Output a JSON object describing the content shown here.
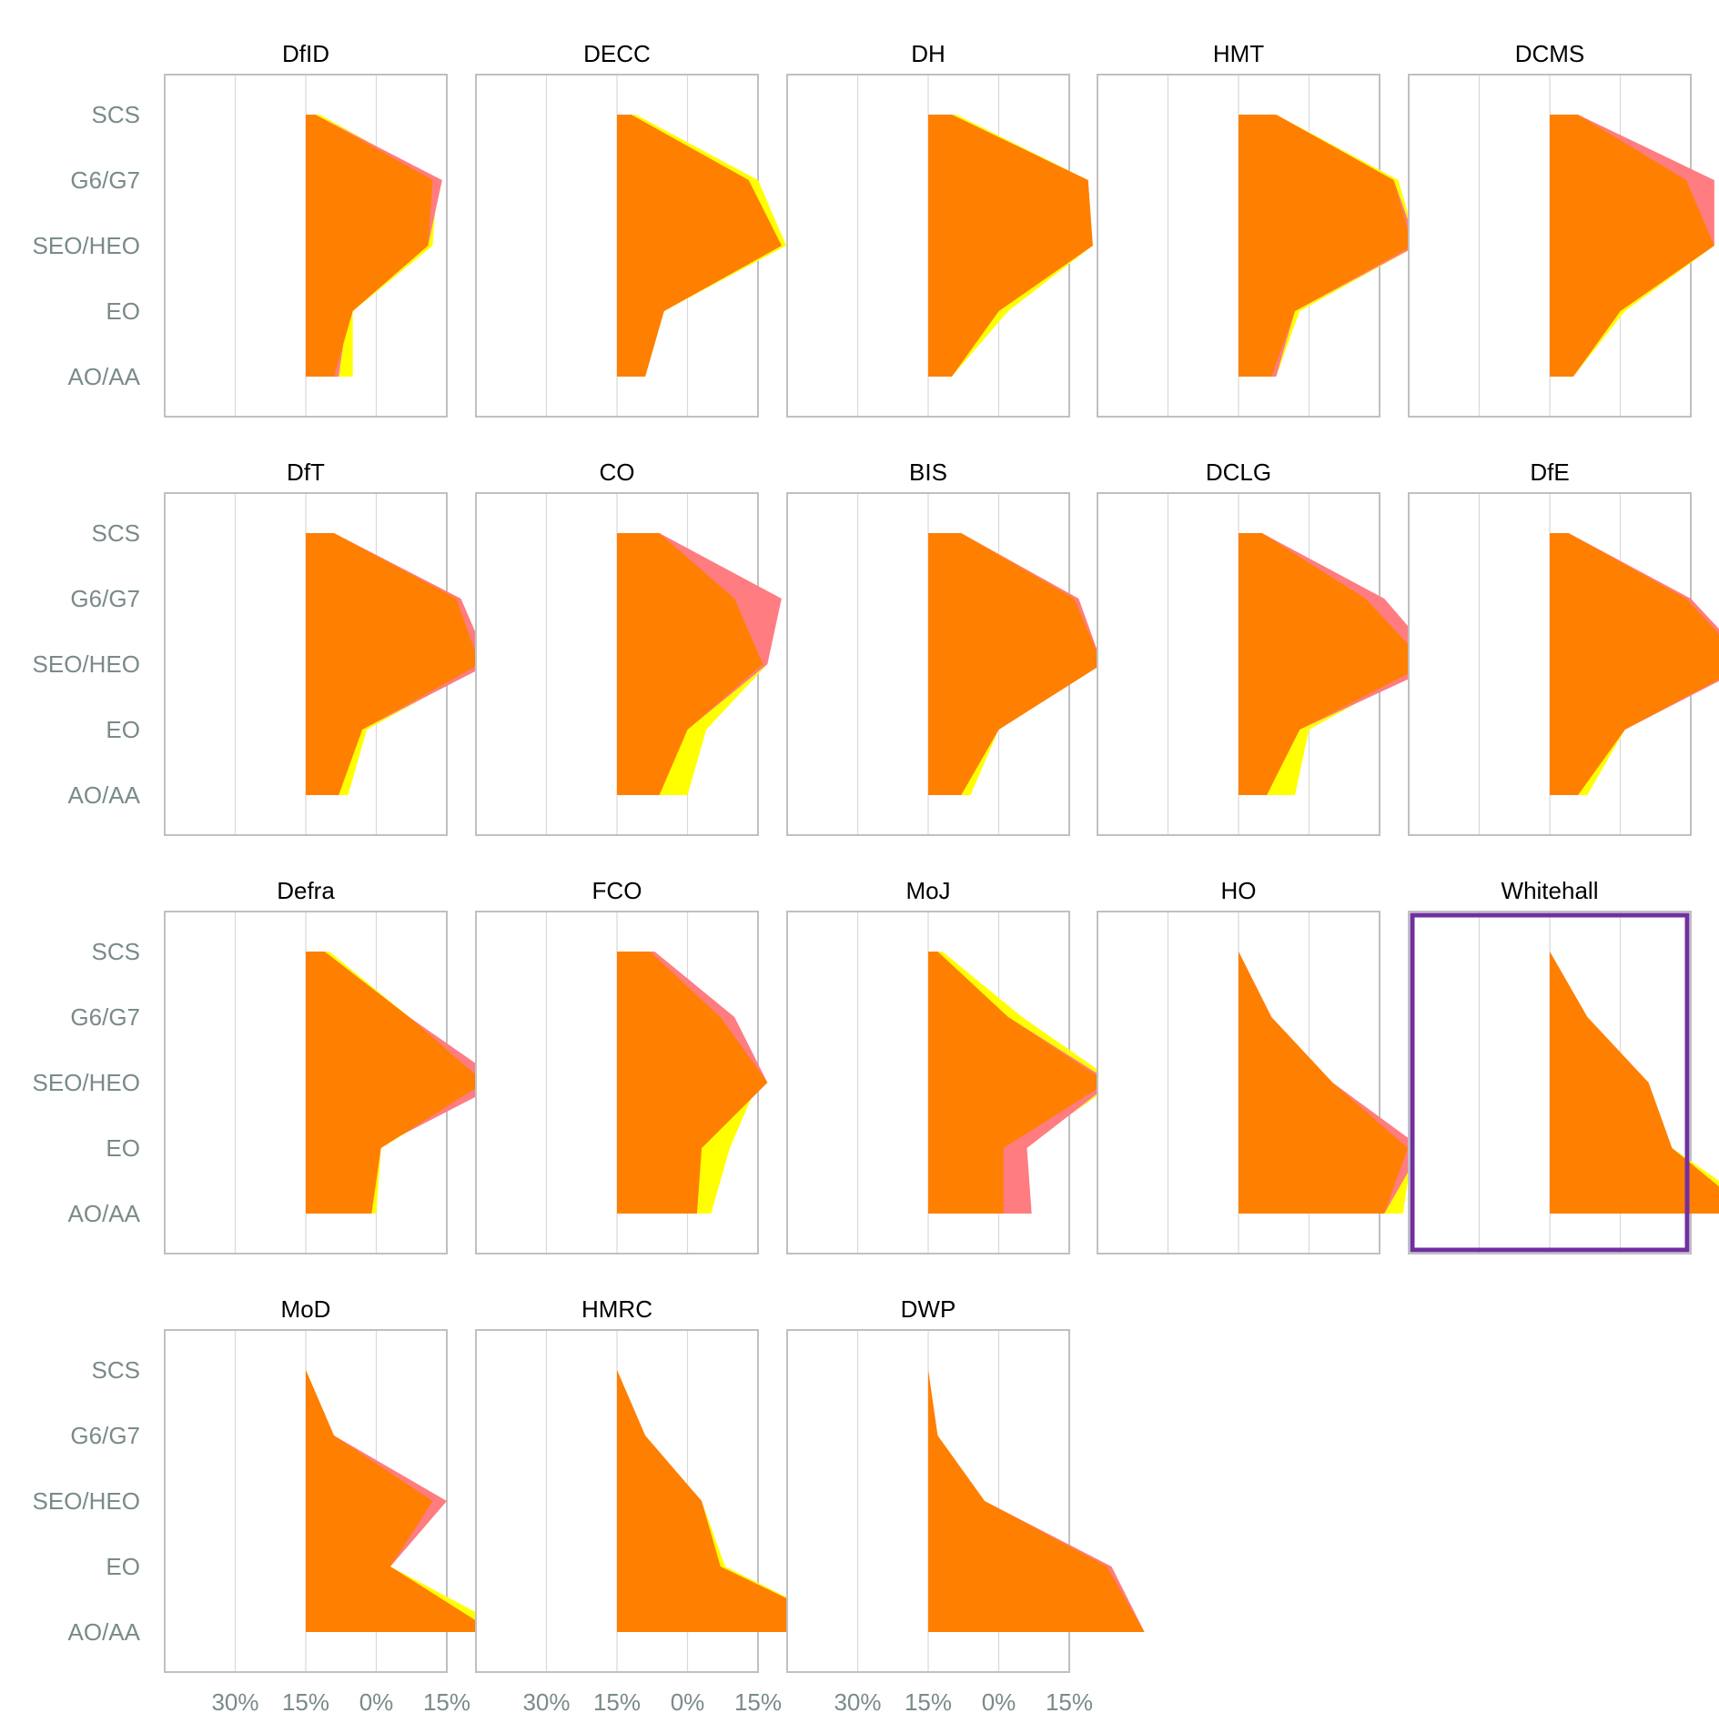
{
  "chart_data": {
    "type": "area",
    "orientation": "horizontal",
    "categories": [
      "SCS",
      "G6/G7",
      "SEO/HEO",
      "EO",
      "AO/AA"
    ],
    "x_ticks": [
      "30%",
      "15%",
      "0%",
      "15%",
      "30%"
    ],
    "xlim": [
      -0.3,
      0.3
    ],
    "grid": true,
    "legend": "none",
    "colors": {
      "yellow": "#ffff00",
      "pink": "#ff7c80",
      "orange": "#ff7f00",
      "frame": "#c0c0c0",
      "highlight": "#7030a0",
      "grid": "#d9d9d9"
    },
    "panels": [
      {
        "title": "DfID",
        "yellow": [
          0.03,
          0.28,
          0.27,
          0.1,
          0.1
        ],
        "pink": [
          0.02,
          0.29,
          0.26,
          0.09,
          0.07
        ],
        "orange": [
          0.02,
          0.27,
          0.26,
          0.1,
          0.06
        ]
      },
      {
        "title": "DECC",
        "yellow": [
          0.04,
          0.3,
          0.36,
          0.1,
          0.06
        ],
        "pink": [
          0.03,
          0.28,
          0.35,
          0.1,
          0.06
        ],
        "orange": [
          0.03,
          0.28,
          0.35,
          0.1,
          0.06
        ]
      },
      {
        "title": "DH",
        "yellow": [
          0.06,
          0.34,
          0.35,
          0.17,
          0.05
        ],
        "pink": [
          0.05,
          0.34,
          0.35,
          0.15,
          0.05
        ],
        "orange": [
          0.05,
          0.34,
          0.35,
          0.15,
          0.05
        ]
      },
      {
        "title": "HMT",
        "yellow": [
          0.08,
          0.34,
          0.38,
          0.13,
          0.08
        ],
        "pink": [
          0.08,
          0.33,
          0.38,
          0.12,
          0.08
        ],
        "orange": [
          0.08,
          0.33,
          0.37,
          0.12,
          0.07
        ]
      },
      {
        "title": "DCMS",
        "yellow": [
          0.06,
          0.28,
          0.35,
          0.16,
          0.05
        ],
        "pink": [
          0.06,
          0.35,
          0.35,
          0.15,
          0.05
        ],
        "orange": [
          0.06,
          0.29,
          0.35,
          0.15,
          0.05
        ]
      },
      {
        "title": "DfT",
        "yellow": [
          0.06,
          0.32,
          0.38,
          0.13,
          0.09
        ],
        "pink": [
          0.06,
          0.33,
          0.39,
          0.12,
          0.07
        ],
        "orange": [
          0.06,
          0.32,
          0.37,
          0.12,
          0.07
        ]
      },
      {
        "title": "CO",
        "yellow": [
          0.09,
          0.27,
          0.32,
          0.19,
          0.15
        ],
        "pink": [
          0.09,
          0.35,
          0.32,
          0.15,
          0.09
        ],
        "orange": [
          0.09,
          0.25,
          0.31,
          0.15,
          0.09
        ]
      },
      {
        "title": "BIS",
        "yellow": [
          0.07,
          0.32,
          0.37,
          0.15,
          0.09
        ],
        "pink": [
          0.07,
          0.32,
          0.37,
          0.15,
          0.07
        ],
        "orange": [
          0.07,
          0.31,
          0.37,
          0.15,
          0.07
        ]
      },
      {
        "title": "DCLG",
        "yellow": [
          0.05,
          0.27,
          0.4,
          0.15,
          0.12
        ],
        "pink": [
          0.05,
          0.31,
          0.43,
          0.13,
          0.06
        ],
        "orange": [
          0.05,
          0.27,
          0.4,
          0.13,
          0.06
        ]
      },
      {
        "title": "DfE",
        "yellow": [
          0.04,
          0.28,
          0.42,
          0.16,
          0.08
        ],
        "pink": [
          0.04,
          0.3,
          0.43,
          0.16,
          0.06
        ],
        "orange": [
          0.04,
          0.29,
          0.42,
          0.16,
          0.06
        ]
      },
      {
        "title": "Defra",
        "yellow": [
          0.05,
          0.22,
          0.39,
          0.16,
          0.15
        ],
        "pink": [
          0.04,
          0.22,
          0.42,
          0.15,
          0.14
        ],
        "orange": [
          0.04,
          0.22,
          0.38,
          0.16,
          0.14
        ]
      },
      {
        "title": "FCO",
        "yellow": [
          0.08,
          0.22,
          0.3,
          0.24,
          0.2
        ],
        "pink": [
          0.08,
          0.25,
          0.32,
          0.18,
          0.17
        ],
        "orange": [
          0.07,
          0.22,
          0.32,
          0.18,
          0.17
        ]
      },
      {
        "title": "MoJ",
        "yellow": [
          0.03,
          0.2,
          0.4,
          0.2,
          0.17
        ],
        "pink": [
          0.02,
          0.17,
          0.39,
          0.21,
          0.22
        ],
        "orange": [
          0.02,
          0.17,
          0.38,
          0.16,
          0.16
        ]
      },
      {
        "title": "HO",
        "yellow": [
          0.0,
          0.07,
          0.2,
          0.37,
          0.35
        ],
        "pink": [
          0.0,
          0.07,
          0.2,
          0.39,
          0.31
        ],
        "orange": [
          0.0,
          0.07,
          0.2,
          0.36,
          0.31
        ]
      },
      {
        "title": "Whitehall",
        "yellow": [
          0.0,
          0.08,
          0.21,
          0.26,
          0.46
        ],
        "pink": [
          0.0,
          0.08,
          0.21,
          0.26,
          0.43
        ],
        "orange": [
          0.0,
          0.08,
          0.21,
          0.26,
          0.43
        ],
        "highlight": true
      },
      {
        "title": "MoD",
        "yellow": [
          0.0,
          0.06,
          0.28,
          0.18,
          0.44
        ],
        "pink": [
          0.0,
          0.06,
          0.3,
          0.18,
          0.4
        ],
        "orange": [
          0.0,
          0.06,
          0.27,
          0.18,
          0.4
        ]
      },
      {
        "title": "HMRC",
        "yellow": [
          0.0,
          0.06,
          0.18,
          0.23,
          0.51
        ],
        "pink": [
          0.0,
          0.06,
          0.18,
          0.22,
          0.51
        ],
        "orange": [
          0.0,
          0.06,
          0.18,
          0.22,
          0.51
        ]
      },
      {
        "title": "DWP",
        "yellow": [
          0.0,
          0.02,
          0.12,
          0.38,
          0.46
        ],
        "pink": [
          0.0,
          0.02,
          0.12,
          0.39,
          0.46
        ],
        "orange": [
          0.0,
          0.02,
          0.12,
          0.38,
          0.46
        ]
      }
    ]
  }
}
